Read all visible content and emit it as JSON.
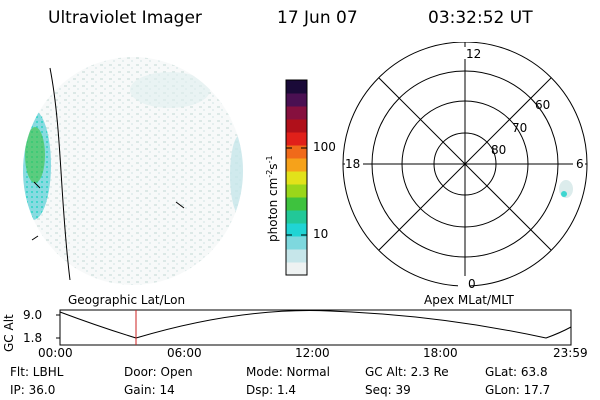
{
  "header": {
    "instrument": "Ultraviolet Imager",
    "date": "17 Jun 07",
    "time": "03:32:52 UT"
  },
  "geo_panel": {
    "title": "Geographic Lat/Lon"
  },
  "apex_panel": {
    "title": "Apex MLat/MLT",
    "mlt_labels": [
      "12",
      "18",
      "6",
      "0"
    ],
    "mlat_labels": [
      "60",
      "70",
      "80"
    ]
  },
  "colorbar": {
    "unit_label": "photon cm",
    "unit_exp1": "-2",
    "unit_mid": "s",
    "unit_exp2": "-1",
    "ticks": [
      "100",
      "10"
    ],
    "scale": "log",
    "colors": [
      "#eef2f2",
      "#c6e6ea",
      "#7ed8de",
      "#20d4d4",
      "#22c898",
      "#3ec23e",
      "#9ad61a",
      "#e2e21a",
      "#f6a21a",
      "#f06a1a",
      "#e0201a",
      "#b0101a",
      "#86103e",
      "#4a1052",
      "#1a0a38"
    ]
  },
  "altitude_plot": {
    "ylabel": "GC Alt",
    "yticks": [
      "9.0",
      "1.8"
    ],
    "xticks": [
      "00:00",
      "06:00",
      "12:00",
      "18:00",
      "23:59"
    ],
    "marker_color": "#cc2222"
  },
  "info": {
    "flt": "Flt: LBHL",
    "ip": "IP: 36.0",
    "door": "Door: Open",
    "gain": "Gain: 14",
    "mode": "Mode: Normal",
    "dsp": "Dsp:    1.4",
    "gcalt": "GC Alt: 2.3 Re",
    "seq": "Seq: 39",
    "glat": "GLat:    63.8",
    "glon": "GLon:    17.7"
  }
}
